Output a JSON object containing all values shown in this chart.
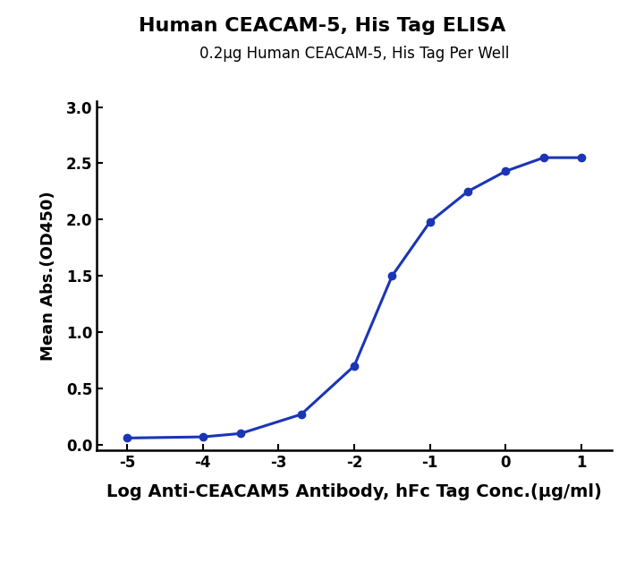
{
  "title": "Human CEACAM-5, His Tag ELISA",
  "subtitle": "0.2µg Human CEACAM-5, His Tag Per Well",
  "xlabel": "Log Anti-CEACAM5 Antibody, hFc Tag Conc.(µg/ml)",
  "ylabel": "Mean Abs.(OD450)",
  "xlim": [
    -5.4,
    1.4
  ],
  "ylim": [
    -0.05,
    3.05
  ],
  "xticks": [
    -5,
    -4,
    -3,
    -2,
    -1,
    0,
    1
  ],
  "yticks": [
    0.0,
    0.5,
    1.0,
    1.5,
    2.0,
    2.5,
    3.0
  ],
  "data_x": [
    -5,
    -4,
    -3.5,
    -2.7,
    -2,
    -1.5,
    -1,
    -0.5,
    0,
    0.5,
    1
  ],
  "data_y": [
    0.06,
    0.07,
    0.1,
    0.27,
    0.7,
    1.5,
    1.98,
    2.25,
    2.43,
    2.55,
    2.55
  ],
  "line_color": "#1a35b5",
  "dot_color": "#1a35b5",
  "background_color": "#ffffff",
  "title_fontsize": 16,
  "subtitle_fontsize": 12,
  "xlabel_fontsize": 14,
  "ylabel_fontsize": 13,
  "tick_fontsize": 12,
  "dot_size": 6,
  "line_width": 2.2
}
